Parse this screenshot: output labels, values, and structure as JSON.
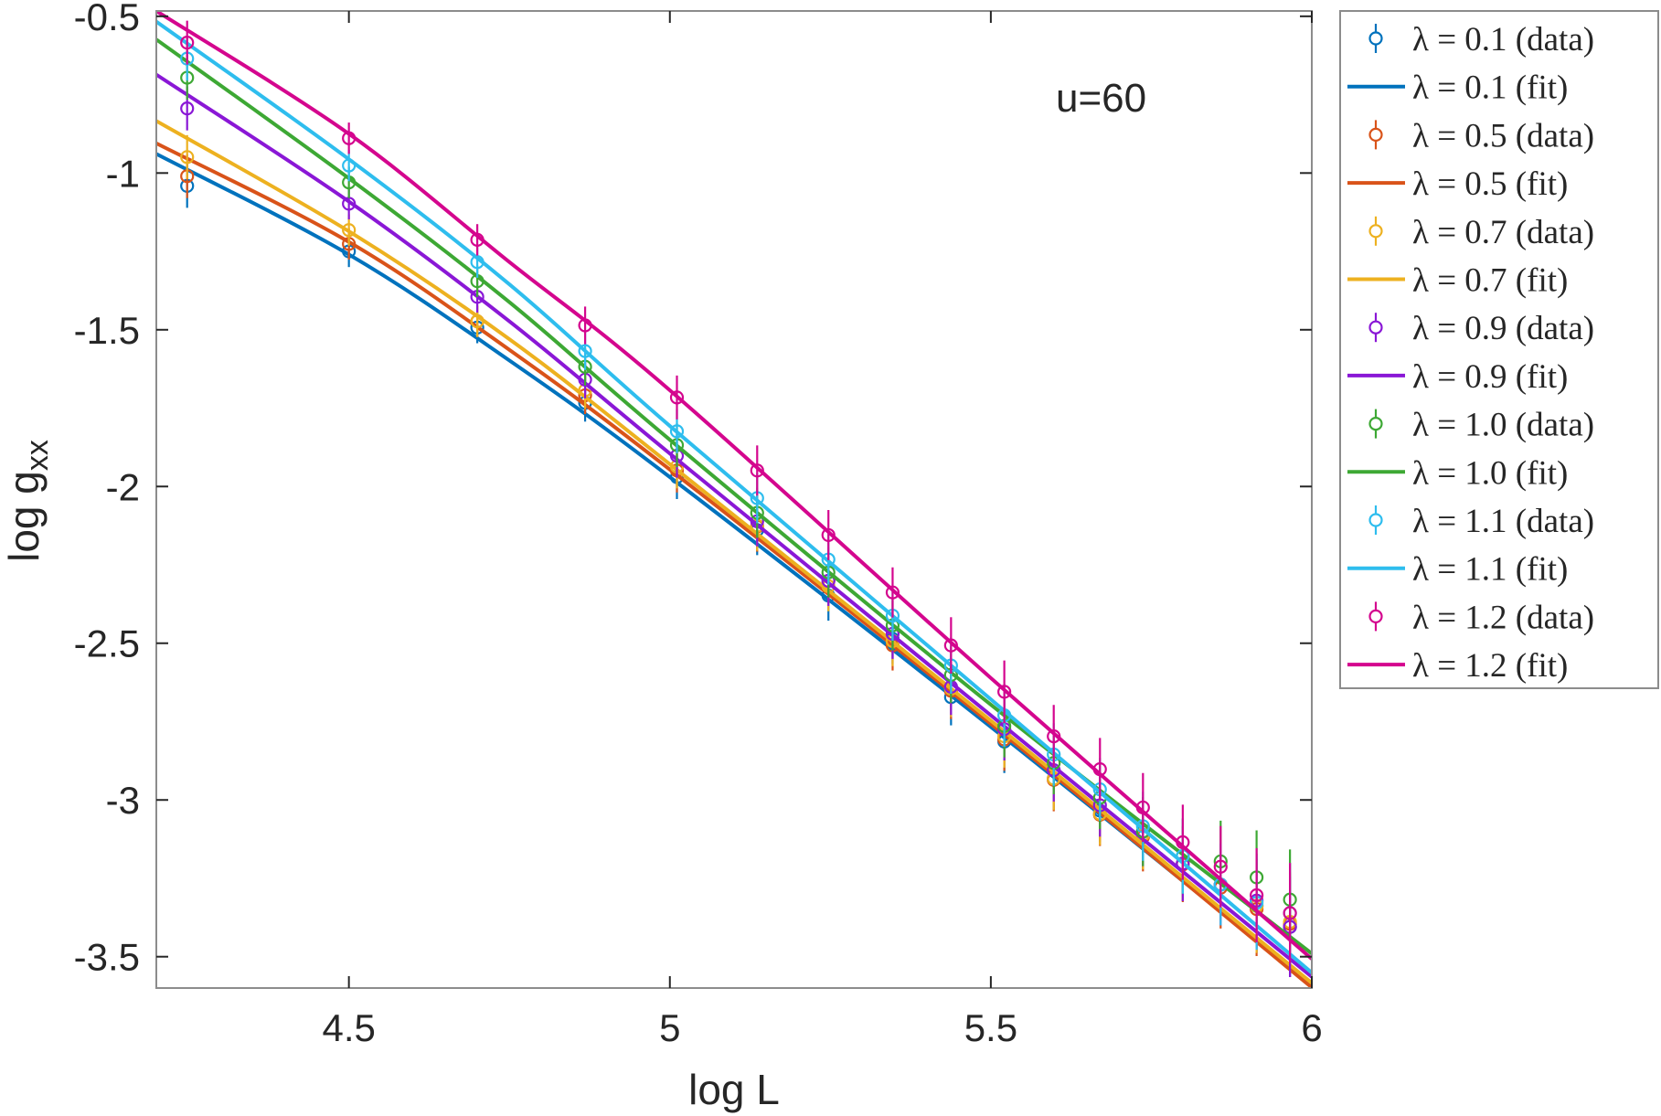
{
  "chart_data": {
    "type": "line",
    "title": "",
    "annotation": "u=60",
    "xlabel": "log L",
    "ylabel_main": "log  g",
    "ylabel_sub": "xx",
    "xlim": [
      4.2,
      6.0
    ],
    "ylim": [
      -3.6,
      -0.483
    ],
    "xticks": [
      4.5,
      5,
      5.5,
      6
    ],
    "xtick_labels": [
      "4.5",
      "5",
      "5.5",
      "6"
    ],
    "yticks": [
      -0.5,
      -1,
      -1.5,
      -2,
      -2.5,
      -3,
      -3.5
    ],
    "ytick_labels": [
      "-0.5",
      "-1",
      "-1.5",
      "-2",
      "-2.5",
      "-3",
      "-3.5"
    ],
    "grid": false,
    "legend_placement": "outside-top-right",
    "x": [
      4.248,
      4.5,
      4.7,
      4.868,
      5.011,
      5.136,
      5.247,
      5.347,
      5.438,
      5.521,
      5.598,
      5.67,
      5.737,
      5.799,
      5.858,
      5.914,
      5.966
    ],
    "err": [
      0.07,
      0.05,
      0.05,
      0.06,
      0.07,
      0.08,
      0.08,
      0.08,
      0.09,
      0.1,
      0.1,
      0.1,
      0.11,
      0.12,
      0.13,
      0.15,
      0.16
    ],
    "fit_x": [
      4.2,
      4.5,
      4.75,
      5.0,
      5.5,
      6.0
    ],
    "series": [
      {
        "name": "λ = 0.1",
        "data_label": "λ = 0.1 (data)",
        "fit_label": "λ = 0.1 (fit)",
        "color": "#0072BD",
        "values": [
          -1.041,
          -1.25,
          -1.493,
          -1.733,
          -1.97,
          -2.139,
          -2.348,
          -2.486,
          -2.672,
          -2.814,
          -2.932,
          -3.034,
          -3.111,
          -3.203,
          -3.27,
          -3.338,
          -3.405
        ],
        "fit": [
          -0.939,
          -1.26,
          -1.598,
          -1.97,
          -2.767,
          -3.591
        ]
      },
      {
        "name": "λ = 0.5",
        "data_label": "λ = 0.5 (data)",
        "fit_label": "λ = 0.5 (fit)",
        "color": "#D95319",
        "values": [
          -1.01,
          -1.226,
          -1.473,
          -1.709,
          -1.949,
          -2.128,
          -2.301,
          -2.507,
          -2.652,
          -2.807,
          -2.936,
          -3.047,
          -3.118,
          -3.206,
          -3.28,
          -3.348,
          -3.395
        ],
        "fit": [
          -0.905,
          -1.22,
          -1.564,
          -1.946,
          -2.757,
          -3.598
        ]
      },
      {
        "name": "λ = 0.7",
        "data_label": "λ = 0.7 (data)",
        "fit_label": "λ = 0.7 (fit)",
        "color": "#EDB120",
        "values": [
          -0.949,
          -1.182,
          -1.473,
          -1.693,
          -1.936,
          -2.125,
          -2.318,
          -2.493,
          -2.645,
          -2.797,
          -2.932,
          -3.044,
          -3.111,
          -3.203,
          -3.27,
          -3.338,
          -3.389
        ],
        "fit": [
          -0.834,
          -1.186,
          -1.53,
          -1.929,
          -2.747,
          -3.584
        ]
      },
      {
        "name": "λ = 0.9",
        "data_label": "λ = 0.9 (data)",
        "fit_label": "λ = 0.9 (fit)",
        "color": "#8A17D6",
        "values": [
          -0.794,
          -1.098,
          -1.395,
          -1.659,
          -1.902,
          -2.111,
          -2.301,
          -2.47,
          -2.639,
          -2.774,
          -2.905,
          -3.017,
          -3.101,
          -3.203,
          -3.27,
          -3.321,
          -3.405
        ],
        "fit": [
          -0.686,
          -1.091,
          -1.473,
          -1.895,
          -2.73,
          -3.564
        ]
      },
      {
        "name": "λ = 1.0",
        "data_label": "λ = 1.0 (data)",
        "fit_label": "λ = 1.0 (fit)",
        "color": "#3DA834",
        "values": [
          -0.696,
          -1.03,
          -1.345,
          -1.618,
          -1.868,
          -2.084,
          -2.274,
          -2.443,
          -2.601,
          -2.764,
          -2.882,
          -2.993,
          -3.101,
          -3.179,
          -3.196,
          -3.247,
          -3.318
        ],
        "fit": [
          -0.574,
          -1.017,
          -1.412,
          -1.851,
          -2.696,
          -3.49
        ]
      },
      {
        "name": "λ = 1.1",
        "data_label": "λ = 1.1 (data)",
        "fit_label": "λ = 1.1 (fit)",
        "color": "#2EBDEE",
        "values": [
          -0.635,
          -0.976,
          -1.284,
          -1.568,
          -1.824,
          -2.037,
          -2.233,
          -2.412,
          -2.571,
          -2.73,
          -2.855,
          -2.966,
          -3.084,
          -3.179,
          -3.27,
          -3.328,
          -3.361
        ],
        "fit": [
          -0.517,
          -0.956,
          -1.355,
          -1.807,
          -2.679,
          -3.551
        ]
      },
      {
        "name": "λ = 1.2",
        "data_label": "λ = 1.2 (data)",
        "fit_label": "λ = 1.2 (fit)",
        "color": "#D4068E",
        "values": [
          -0.584,
          -0.889,
          -1.213,
          -1.486,
          -1.716,
          -1.949,
          -2.155,
          -2.338,
          -2.507,
          -2.655,
          -2.797,
          -2.902,
          -3.024,
          -3.135,
          -3.213,
          -3.304,
          -3.361
        ],
        "fit": [
          -0.483,
          -0.875,
          -1.284,
          -1.693,
          -2.611,
          -3.507
        ]
      }
    ]
  }
}
